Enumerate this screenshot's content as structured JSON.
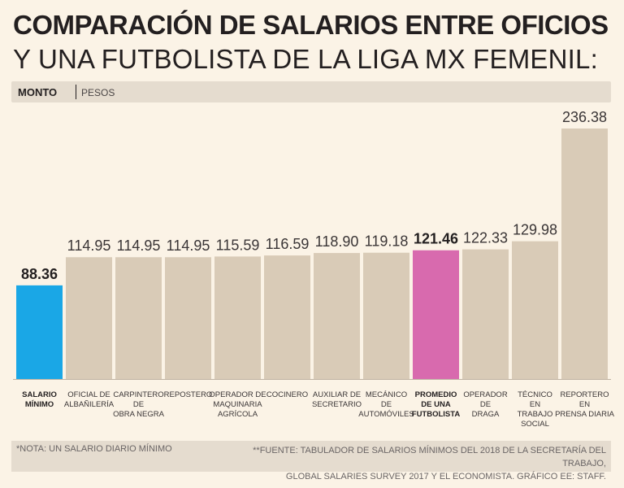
{
  "title": {
    "line1": "COMPARACIÓN DE SALARIOS ENTRE OFICIOS",
    "line2": "Y UNA FUTBOLISTA DE LA LIGA MX FEMENIL:"
  },
  "unit": {
    "label": "MONTO",
    "sublabel": "PESOS"
  },
  "colors": {
    "background": "#fbf3e6",
    "bar_default": "#d9cbb7",
    "bar_minimum": "#1aa7e6",
    "bar_highlight": "#d86aae"
  },
  "chart_data": {
    "type": "bar",
    "title": "COMPARACIÓN DE SALARIOS ENTRE OFICIOS Y UNA FUTBOLISTA DE LA LIGA MX FEMENIL:",
    "ylabel": "MONTO | PESOS",
    "xlabel": "",
    "ylim": [
      0,
      250
    ],
    "categories": [
      [
        "SALARIO",
        "MÍNIMO"
      ],
      [
        "OFICIAL DE",
        "ALBAÑILERÍA"
      ],
      [
        "CARPINTERO",
        "DE",
        "OBRA NEGRA"
      ],
      [
        "REPOSTERO"
      ],
      [
        "OPERADOR DE",
        "MAQUINARIA",
        "AGRÍCOLA"
      ],
      [
        "COCINERO"
      ],
      [
        "AUXILIAR DE",
        "SECRETARIO"
      ],
      [
        "MECÁNICO",
        "DE",
        "AUTOMÓVILES"
      ],
      [
        "PROMEDIO",
        "DE UNA",
        "FUTBOLISTA"
      ],
      [
        "OPERADOR",
        "DE",
        "DRAGA"
      ],
      [
        "TÉCNICO",
        "EN",
        "TRABAJO",
        "SOCIAL"
      ],
      [
        "REPORTERO",
        "EN",
        "PRENSA DIARIA"
      ]
    ],
    "values": [
      88.36,
      114.95,
      114.95,
      114.95,
      115.59,
      116.59,
      118.9,
      119.18,
      121.46,
      122.33,
      129.98,
      236.38
    ],
    "value_labels": [
      "88.36",
      "114.95",
      "114.95",
      "114.95",
      "115.59",
      "116.59",
      "118.90",
      "119.18",
      "121.46",
      "122.33",
      "129.98",
      "236.38"
    ],
    "highlight": [
      0,
      8
    ]
  },
  "footer": {
    "note": "*NOTA: UN SALARIO DIARIO MÍNIMO",
    "source_line1": "**FUENTE: TABULADOR DE SALARIOS MÍNIMOS DEL 2018 DE LA SECRETARÍA DEL TRABAJO,",
    "source_line2": "GLOBAL SALARIES SURVEY 2017 Y EL ECONOMISTA. GRÁFICO EE: STAFF."
  }
}
